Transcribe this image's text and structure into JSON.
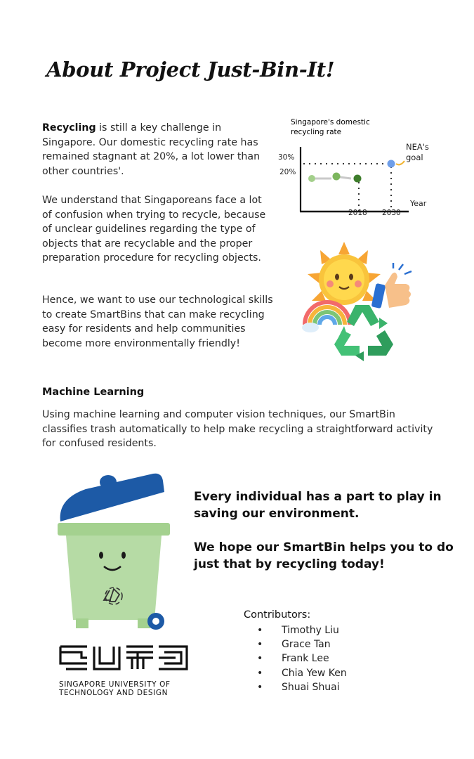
{
  "title": "About Project Just-Bin-It!",
  "intro": {
    "lead": "Recycling",
    "rest": " is still a key challenge in Singapore. Our domestic recycling rate has remained stagnant at 20%, a lot lower than other countries'."
  },
  "confusion": "We understand that Singaporeans face a lot of confusion when trying to recycle, because of unclear guidelines regarding the type of objects that are recyclable and the proper preparation procedure for recycling objects.",
  "hence": "Hence, we want to use our technological skills to create SmartBins that can make recycling easy for residents and help communities become more environmentally friendly!",
  "ml": {
    "heading": "Machine Learning",
    "text": "Using machine learning and computer vision techniques, our SmartBin classifies trash automatically to help make recycling a straightforward activity for confused residents."
  },
  "slogan1": "Every individual has a part to play in saving our environment.",
  "slogan2": "We hope our SmartBin helps you to do just that by recycling today!",
  "contributors": {
    "heading": "Contributors:",
    "names": [
      "Timothy Liu",
      "Grace Tan",
      "Frank Lee",
      "Chia Yew Ken",
      "Shuai Shuai"
    ]
  },
  "logo": {
    "line1": "SINGAPORE UNIVERSITY OF",
    "line2": "TECHNOLOGY AND DESIGN"
  },
  "chart_data": {
    "type": "scatter",
    "title_line1": "Singapore's domestic",
    "title_line2": "recycling rate",
    "xlabel": "Year",
    "ylabel": "",
    "ytick_labels": [
      "30%",
      "20%"
    ],
    "xtick_labels": [
      "2018",
      "2030"
    ],
    "annotation": [
      "NEA's",
      "goal"
    ],
    "current_points": [
      {
        "label": "",
        "y": 20
      },
      {
        "label": "",
        "y": 20
      },
      {
        "label": "2018",
        "y": 20
      }
    ],
    "goal_point": {
      "label": "2030",
      "y": 30
    },
    "colors": {
      "p1": "#a3cf8b",
      "p2": "#7cb65e",
      "p3": "#3e7d2b",
      "goal": "#6f9ee8",
      "axis": "#111111"
    }
  },
  "colors": {
    "bin_lid": "#1d5aa6",
    "bin_body": "#b6dba5",
    "bin_rim": "#a4d18f",
    "sun": "#f7a534",
    "recycle_green": "#3ab36b"
  }
}
